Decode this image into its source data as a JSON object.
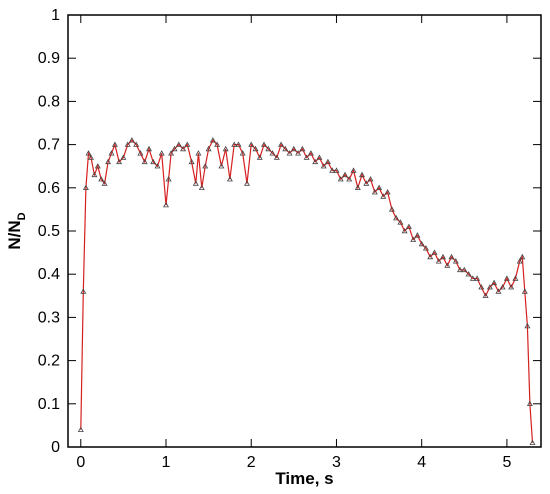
{
  "chart_data": {
    "type": "line",
    "title": "",
    "xlabel": "Time, s",
    "ylabel": "N/N",
    "ylabel_subscript": "D",
    "xlim": [
      -0.15,
      5.4
    ],
    "ylim": [
      0,
      1
    ],
    "xticks": [
      0,
      1,
      2,
      3,
      4,
      5
    ],
    "yticks": [
      0,
      0.1,
      0.2,
      0.3,
      0.4,
      0.5,
      0.6,
      0.7,
      0.8,
      0.9,
      1
    ],
    "ytick_labels": [
      "0",
      "0.1",
      "0.2",
      "0.3",
      "0.4",
      "0.5",
      "0.6",
      "0.7",
      "0.8",
      "0.9",
      "1"
    ],
    "xtick_labels": [
      "0",
      "1",
      "2",
      "3",
      "4",
      "5"
    ],
    "grid": false,
    "series": [
      {
        "line_color": "#d62020",
        "marker_color": "#444444",
        "marker": "triangle",
        "x": [
          0.0,
          0.03,
          0.06,
          0.09,
          0.12,
          0.16,
          0.2,
          0.24,
          0.28,
          0.32,
          0.36,
          0.4,
          0.45,
          0.5,
          0.55,
          0.6,
          0.65,
          0.7,
          0.75,
          0.8,
          0.85,
          0.9,
          0.95,
          1.0,
          1.03,
          1.06,
          1.1,
          1.15,
          1.2,
          1.25,
          1.3,
          1.35,
          1.38,
          1.42,
          1.46,
          1.5,
          1.55,
          1.6,
          1.65,
          1.7,
          1.75,
          1.8,
          1.85,
          1.9,
          1.95,
          2.0,
          2.05,
          2.1,
          2.15,
          2.2,
          2.25,
          2.3,
          2.35,
          2.4,
          2.45,
          2.5,
          2.55,
          2.6,
          2.65,
          2.7,
          2.75,
          2.8,
          2.85,
          2.9,
          2.95,
          3.0,
          3.05,
          3.1,
          3.15,
          3.2,
          3.25,
          3.3,
          3.35,
          3.4,
          3.45,
          3.5,
          3.55,
          3.6,
          3.65,
          3.7,
          3.75,
          3.8,
          3.85,
          3.9,
          3.95,
          4.0,
          4.05,
          4.1,
          4.15,
          4.2,
          4.25,
          4.3,
          4.35,
          4.4,
          4.45,
          4.5,
          4.55,
          4.6,
          4.65,
          4.7,
          4.75,
          4.8,
          4.85,
          4.9,
          4.95,
          5.0,
          5.05,
          5.1,
          5.15,
          5.18,
          5.21,
          5.24,
          5.27,
          5.3
        ],
        "y": [
          0.04,
          0.36,
          0.6,
          0.68,
          0.67,
          0.63,
          0.65,
          0.62,
          0.61,
          0.66,
          0.68,
          0.7,
          0.66,
          0.67,
          0.7,
          0.71,
          0.7,
          0.68,
          0.66,
          0.69,
          0.66,
          0.65,
          0.68,
          0.56,
          0.62,
          0.68,
          0.69,
          0.7,
          0.69,
          0.7,
          0.66,
          0.61,
          0.68,
          0.6,
          0.65,
          0.69,
          0.71,
          0.7,
          0.65,
          0.69,
          0.62,
          0.7,
          0.7,
          0.68,
          0.61,
          0.7,
          0.69,
          0.67,
          0.7,
          0.69,
          0.68,
          0.67,
          0.7,
          0.69,
          0.68,
          0.69,
          0.68,
          0.69,
          0.67,
          0.68,
          0.66,
          0.67,
          0.65,
          0.66,
          0.64,
          0.64,
          0.62,
          0.63,
          0.62,
          0.64,
          0.6,
          0.63,
          0.61,
          0.62,
          0.59,
          0.6,
          0.58,
          0.59,
          0.55,
          0.53,
          0.52,
          0.5,
          0.51,
          0.48,
          0.49,
          0.47,
          0.46,
          0.44,
          0.45,
          0.43,
          0.44,
          0.42,
          0.44,
          0.43,
          0.41,
          0.41,
          0.4,
          0.39,
          0.39,
          0.37,
          0.35,
          0.37,
          0.38,
          0.36,
          0.37,
          0.39,
          0.37,
          0.39,
          0.43,
          0.44,
          0.36,
          0.28,
          0.1,
          0.01
        ]
      }
    ]
  }
}
